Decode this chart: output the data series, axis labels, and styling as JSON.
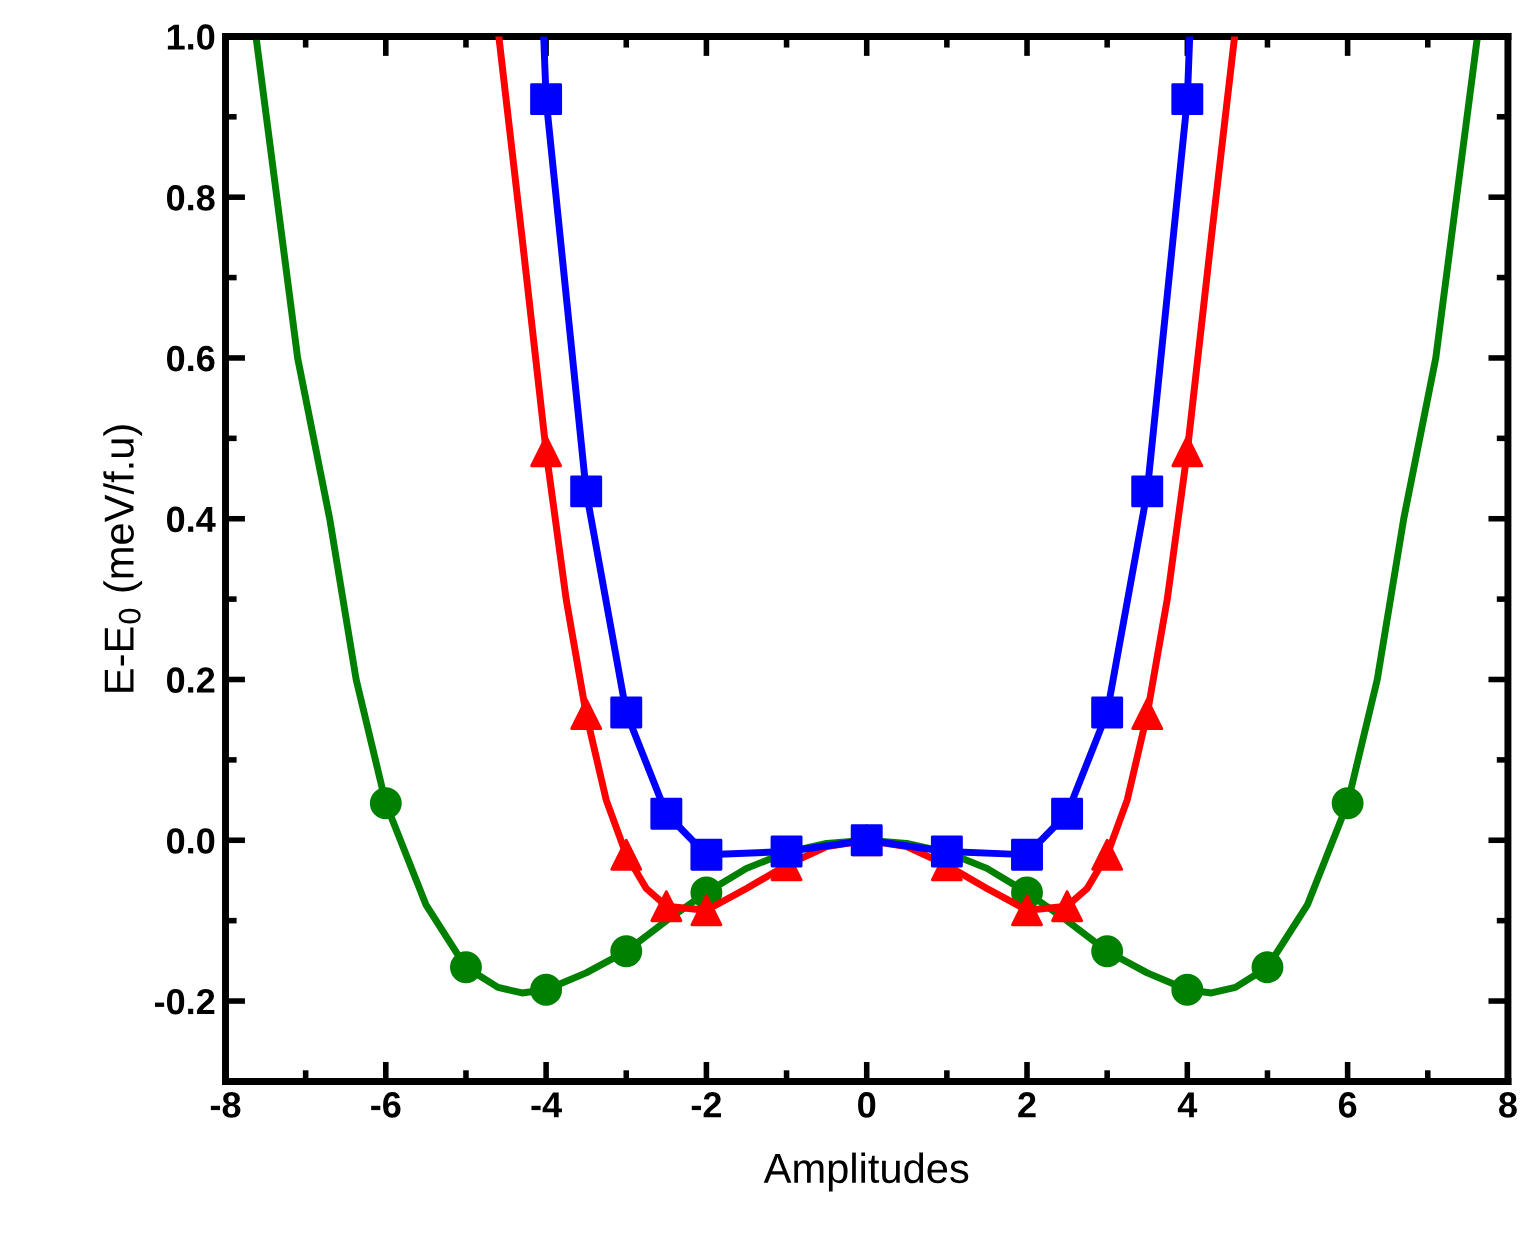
{
  "chart_data": {
    "type": "line",
    "xlabel": "Amplitudes",
    "ylabel": "E-E$_{0}$ (meV/f.u)",
    "xlim": [
      -8,
      8
    ],
    "ylim": [
      -0.3,
      1.0
    ],
    "xticks": [
      -8,
      -6,
      -4,
      -2,
      0,
      2,
      4,
      6,
      8
    ],
    "yticks": [
      {
        "value": -0.2,
        "label": "-0.2"
      },
      {
        "value": 0.0,
        "label": "0.0"
      },
      {
        "value": 0.2,
        "label": "0.2"
      },
      {
        "value": 0.4,
        "label": "0.4"
      },
      {
        "value": 0.6,
        "label": "0.6"
      },
      {
        "value": 0.8,
        "label": "0.8"
      },
      {
        "value": 1.0,
        "label": "1.0"
      }
    ],
    "grid": false,
    "legend": false,
    "series": [
      {
        "color": "#008000",
        "x": [
          -7.62,
          -7.1,
          -6.7,
          -6.37,
          -6,
          -5.5,
          -5,
          -4.6,
          -4.3,
          -4,
          -3.5,
          -3,
          -2.5,
          -2,
          -1.5,
          -1,
          -0.5,
          0,
          0.5,
          1,
          1.5,
          2,
          2.5,
          3,
          3.5,
          4,
          4.3,
          4.6,
          5,
          5.5,
          6,
          6.37,
          6.7,
          7.1,
          7.62
        ],
        "values": [
          1.0,
          0.6,
          0.4,
          0.2,
          0.046,
          -0.08,
          -0.158,
          -0.183,
          -0.19,
          -0.186,
          -0.165,
          -0.138,
          -0.1,
          -0.065,
          -0.035,
          -0.015,
          -0.004,
          0,
          -0.004,
          -0.015,
          -0.035,
          -0.065,
          -0.1,
          -0.138,
          -0.165,
          -0.186,
          -0.19,
          -0.183,
          -0.158,
          -0.08,
          0.046,
          0.2,
          0.4,
          0.6,
          1.0
        ]
      },
      {
        "type": "scatter",
        "color": "#008000",
        "marker": "circle",
        "x": [
          -6,
          -5,
          -4,
          -3,
          -2,
          2,
          3,
          4,
          5,
          6
        ],
        "values": [
          0.046,
          -0.158,
          -0.186,
          -0.138,
          -0.065,
          -0.065,
          -0.138,
          -0.186,
          -0.158,
          0.046
        ]
      },
      {
        "color": "#ff0000",
        "x": [
          -4.59,
          -4.3,
          -4,
          -3.75,
          -3.5,
          -3.25,
          -3,
          -2.75,
          -2.5,
          -2,
          -1.5,
          -1,
          -0.5,
          0,
          0.5,
          1,
          1.5,
          2,
          2.5,
          2.75,
          3,
          3.25,
          3.5,
          3.75,
          4,
          4.3,
          4.59
        ],
        "values": [
          1.0,
          0.75,
          0.484,
          0.3,
          0.157,
          0.05,
          -0.018,
          -0.06,
          -0.082,
          -0.087,
          -0.06,
          -0.031,
          -0.008,
          0,
          -0.008,
          -0.031,
          -0.06,
          -0.087,
          -0.082,
          -0.06,
          -0.018,
          0.05,
          0.157,
          0.3,
          0.484,
          0.75,
          1.0
        ]
      },
      {
        "type": "scatter",
        "color": "#ff0000",
        "marker": "triangle",
        "x": [
          -4,
          -3.5,
          -3,
          -2.5,
          -2,
          -1,
          0,
          1,
          2,
          2.5,
          3,
          3.5,
          4
        ],
        "values": [
          0.484,
          0.157,
          -0.018,
          -0.082,
          -0.087,
          -0.031,
          0,
          -0.031,
          -0.087,
          -0.082,
          -0.018,
          0.157,
          0.484
        ]
      },
      {
        "color": "#0000ff",
        "x": [
          -4.03,
          -4,
          -3.5,
          -3,
          -2.5,
          -2,
          -1,
          0,
          1,
          2,
          2.5,
          3,
          3.5,
          4,
          4.03
        ],
        "values": [
          1.0,
          0.922,
          0.434,
          0.159,
          0.033,
          -0.018,
          -0.014,
          0,
          -0.014,
          -0.018,
          0.033,
          0.159,
          0.434,
          0.922,
          1.0
        ]
      },
      {
        "type": "scatter",
        "color": "#0000ff",
        "marker": "square",
        "x": [
          -4,
          -3.5,
          -3,
          -2.5,
          -2,
          -1,
          0,
          1,
          2,
          2.5,
          3,
          3.5,
          4
        ],
        "values": [
          0.922,
          0.434,
          0.159,
          0.033,
          -0.018,
          -0.014,
          0,
          -0.014,
          -0.018,
          0.033,
          0.159,
          0.434,
          0.922
        ]
      }
    ]
  }
}
